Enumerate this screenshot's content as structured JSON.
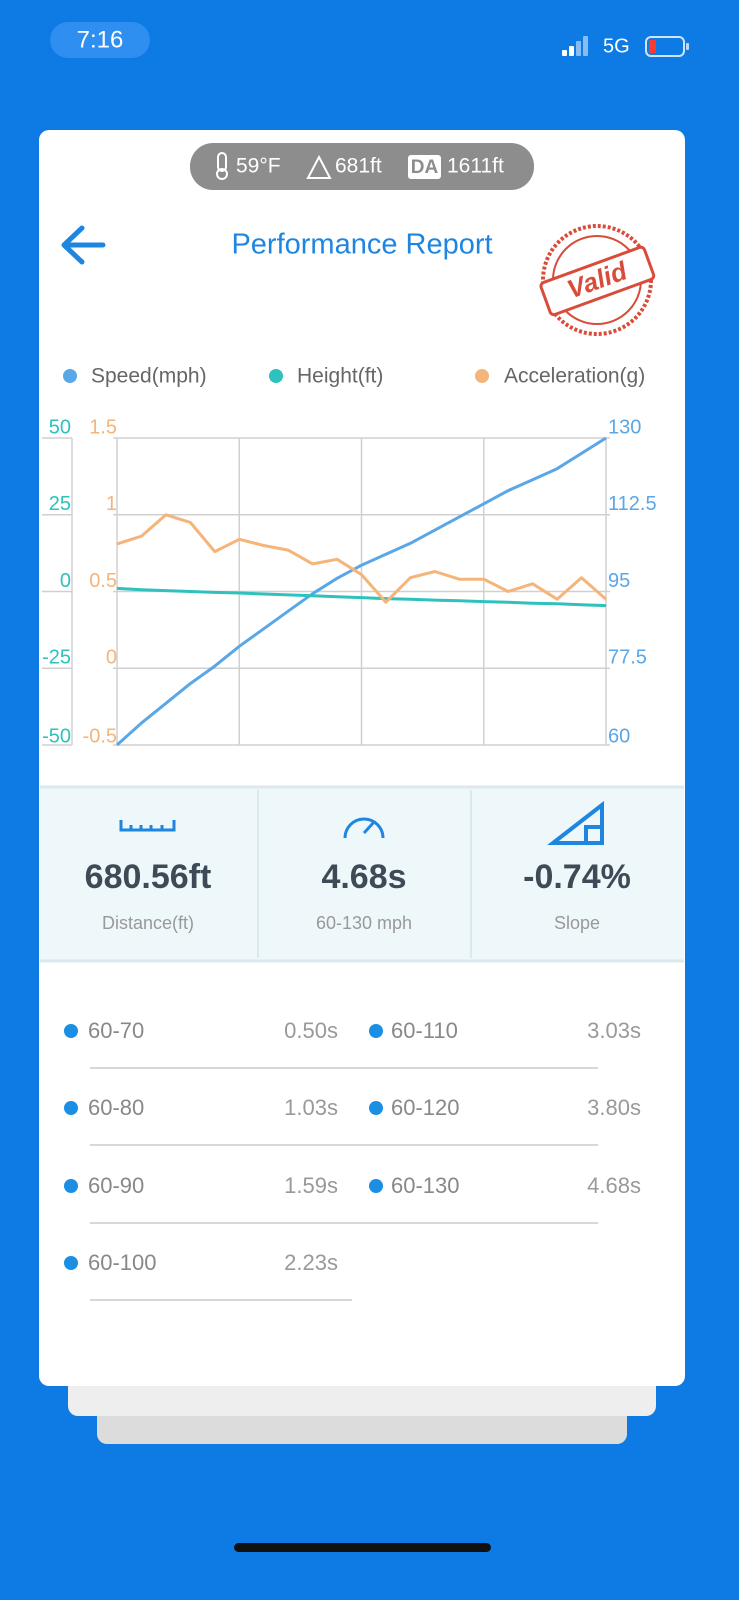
{
  "status_bar": {
    "time": "7:16",
    "network": "5G"
  },
  "conditions": {
    "temperature": "59°F",
    "altitude": "681ft",
    "da_label": "DA",
    "density_altitude": "1611ft"
  },
  "header": {
    "title": "Performance Report",
    "stamp": "Valid"
  },
  "chart_data": {
    "type": "line",
    "series": [
      {
        "name": "Speed(mph)",
        "color": "#5aa7e8",
        "axis": "y2",
        "values": [
          60,
          65,
          69.5,
          74,
          78,
          82.5,
          86.5,
          90.5,
          94.5,
          98,
          101,
          103.5,
          106,
          109,
          112,
          115,
          118,
          120.5,
          123,
          126.5,
          130
        ]
      },
      {
        "name": "Height(ft)",
        "color": "#2ec1bd",
        "axis": "y",
        "values": [
          1,
          0.6,
          0.3,
          0,
          -0.3,
          -0.5,
          -0.8,
          -1.1,
          -1.4,
          -1.7,
          -2,
          -2.3,
          -2.5,
          -2.8,
          -3,
          -3.3,
          -3.5,
          -3.8,
          -4,
          -4.3,
          -4.6
        ]
      },
      {
        "name": "Acceleration(g)",
        "color": "#f5b47a",
        "axis": "y3",
        "values": [
          0.81,
          0.86,
          1.0,
          0.95,
          0.76,
          0.84,
          0.8,
          0.77,
          0.68,
          0.71,
          0.61,
          0.43,
          0.59,
          0.63,
          0.58,
          0.58,
          0.5,
          0.55,
          0.45,
          0.59,
          0.45
        ]
      }
    ],
    "ylim": [
      -50,
      50
    ],
    "yticks": [
      -50,
      -25,
      0,
      25,
      50
    ],
    "y3lim": [
      -0.5,
      1.5
    ],
    "y3ticks": [
      -0.5,
      0,
      0.5,
      1,
      1.5
    ],
    "y2lim": [
      60,
      130
    ],
    "y2ticks": [
      60,
      77.5,
      95,
      112.5,
      130
    ],
    "grid": true
  },
  "stats": [
    {
      "value": "680.56ft",
      "label": "Distance(ft)"
    },
    {
      "value": "4.68s",
      "label": "60-130 mph"
    },
    {
      "value": "-0.74%",
      "label": "Slope"
    }
  ],
  "splits": [
    {
      "range": "60-70",
      "time": "0.50s"
    },
    {
      "range": "60-80",
      "time": "1.03s"
    },
    {
      "range": "60-90",
      "time": "1.59s"
    },
    {
      "range": "60-100",
      "time": "2.23s"
    },
    {
      "range": "60-110",
      "time": "3.03s"
    },
    {
      "range": "60-120",
      "time": "3.80s"
    },
    {
      "range": "60-130",
      "time": "4.68s"
    }
  ]
}
